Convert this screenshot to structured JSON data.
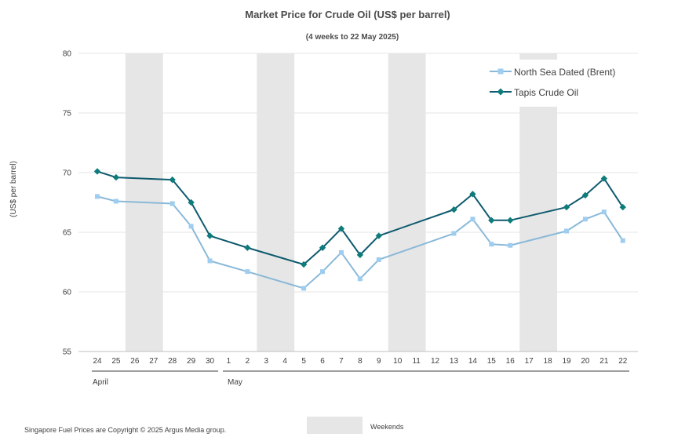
{
  "chart_data": {
    "type": "line",
    "title": "Market Price for Crude Oil (US$ per barrel)",
    "subtitle": "(4 weeks to 22 May 2025)",
    "ylabel": "(US$ per barrel)",
    "xlabel": "",
    "ylim": [
      55,
      80
    ],
    "yticks": [
      55,
      60,
      65,
      70,
      75,
      80
    ],
    "grid": true,
    "legend_position": "top-right",
    "categories": [
      "24",
      "25",
      "26",
      "27",
      "28",
      "29",
      "30",
      "1",
      "2",
      "3",
      "4",
      "5",
      "6",
      "7",
      "8",
      "9",
      "10",
      "11",
      "12",
      "13",
      "14",
      "15",
      "16",
      "17",
      "18",
      "19",
      "20",
      "21",
      "22"
    ],
    "months": [
      {
        "label": "April",
        "start": "24",
        "end": "30"
      },
      {
        "label": "May",
        "start": "1",
        "end": "22"
      }
    ],
    "weekends": [
      [
        "26",
        "27"
      ],
      [
        "3",
        "4"
      ],
      [
        "10",
        "11"
      ],
      [
        "17",
        "18"
      ]
    ],
    "weekend_label": "Weekends",
    "weekend_color": "#e6e6e6",
    "series": [
      {
        "name": "North Sea Dated (Brent)",
        "color": "#8ab9d8",
        "marker_color": "#9fcdef",
        "marker": "square",
        "points": [
          {
            "x": "24",
            "y": 68.0
          },
          {
            "x": "25",
            "y": 67.6
          },
          {
            "x": "28",
            "y": 67.4
          },
          {
            "x": "29",
            "y": 65.5
          },
          {
            "x": "30",
            "y": 62.6
          },
          {
            "x": "2",
            "y": 61.7
          },
          {
            "x": "5",
            "y": 60.3
          },
          {
            "x": "6",
            "y": 61.7
          },
          {
            "x": "7",
            "y": 63.3
          },
          {
            "x": "8",
            "y": 61.1
          },
          {
            "x": "9",
            "y": 62.7
          },
          {
            "x": "13",
            "y": 64.9
          },
          {
            "x": "14",
            "y": 66.1
          },
          {
            "x": "15",
            "y": 64.0
          },
          {
            "x": "16",
            "y": 63.9
          },
          {
            "x": "19",
            "y": 65.1
          },
          {
            "x": "20",
            "y": 66.1
          },
          {
            "x": "21",
            "y": 66.7
          },
          {
            "x": "22",
            "y": 64.3
          }
        ]
      },
      {
        "name": "Tapis Crude Oil",
        "color": "#0e5a6e",
        "marker_color": "#0e7c7b",
        "marker": "diamond",
        "points": [
          {
            "x": "24",
            "y": 70.1
          },
          {
            "x": "25",
            "y": 69.6
          },
          {
            "x": "28",
            "y": 69.4
          },
          {
            "x": "29",
            "y": 67.5
          },
          {
            "x": "30",
            "y": 64.7
          },
          {
            "x": "2",
            "y": 63.7
          },
          {
            "x": "5",
            "y": 62.3
          },
          {
            "x": "6",
            "y": 63.7
          },
          {
            "x": "7",
            "y": 65.3
          },
          {
            "x": "8",
            "y": 63.1
          },
          {
            "x": "9",
            "y": 64.7
          },
          {
            "x": "13",
            "y": 66.9
          },
          {
            "x": "14",
            "y": 68.2
          },
          {
            "x": "15",
            "y": 66.0
          },
          {
            "x": "16",
            "y": 66.0
          },
          {
            "x": "19",
            "y": 67.1
          },
          {
            "x": "20",
            "y": 68.1
          },
          {
            "x": "21",
            "y": 69.5
          },
          {
            "x": "22",
            "y": 67.1
          }
        ]
      }
    ]
  },
  "footer": {
    "copyright": "Singapore Fuel Prices are Copyright © 2025 Argus Media group."
  }
}
